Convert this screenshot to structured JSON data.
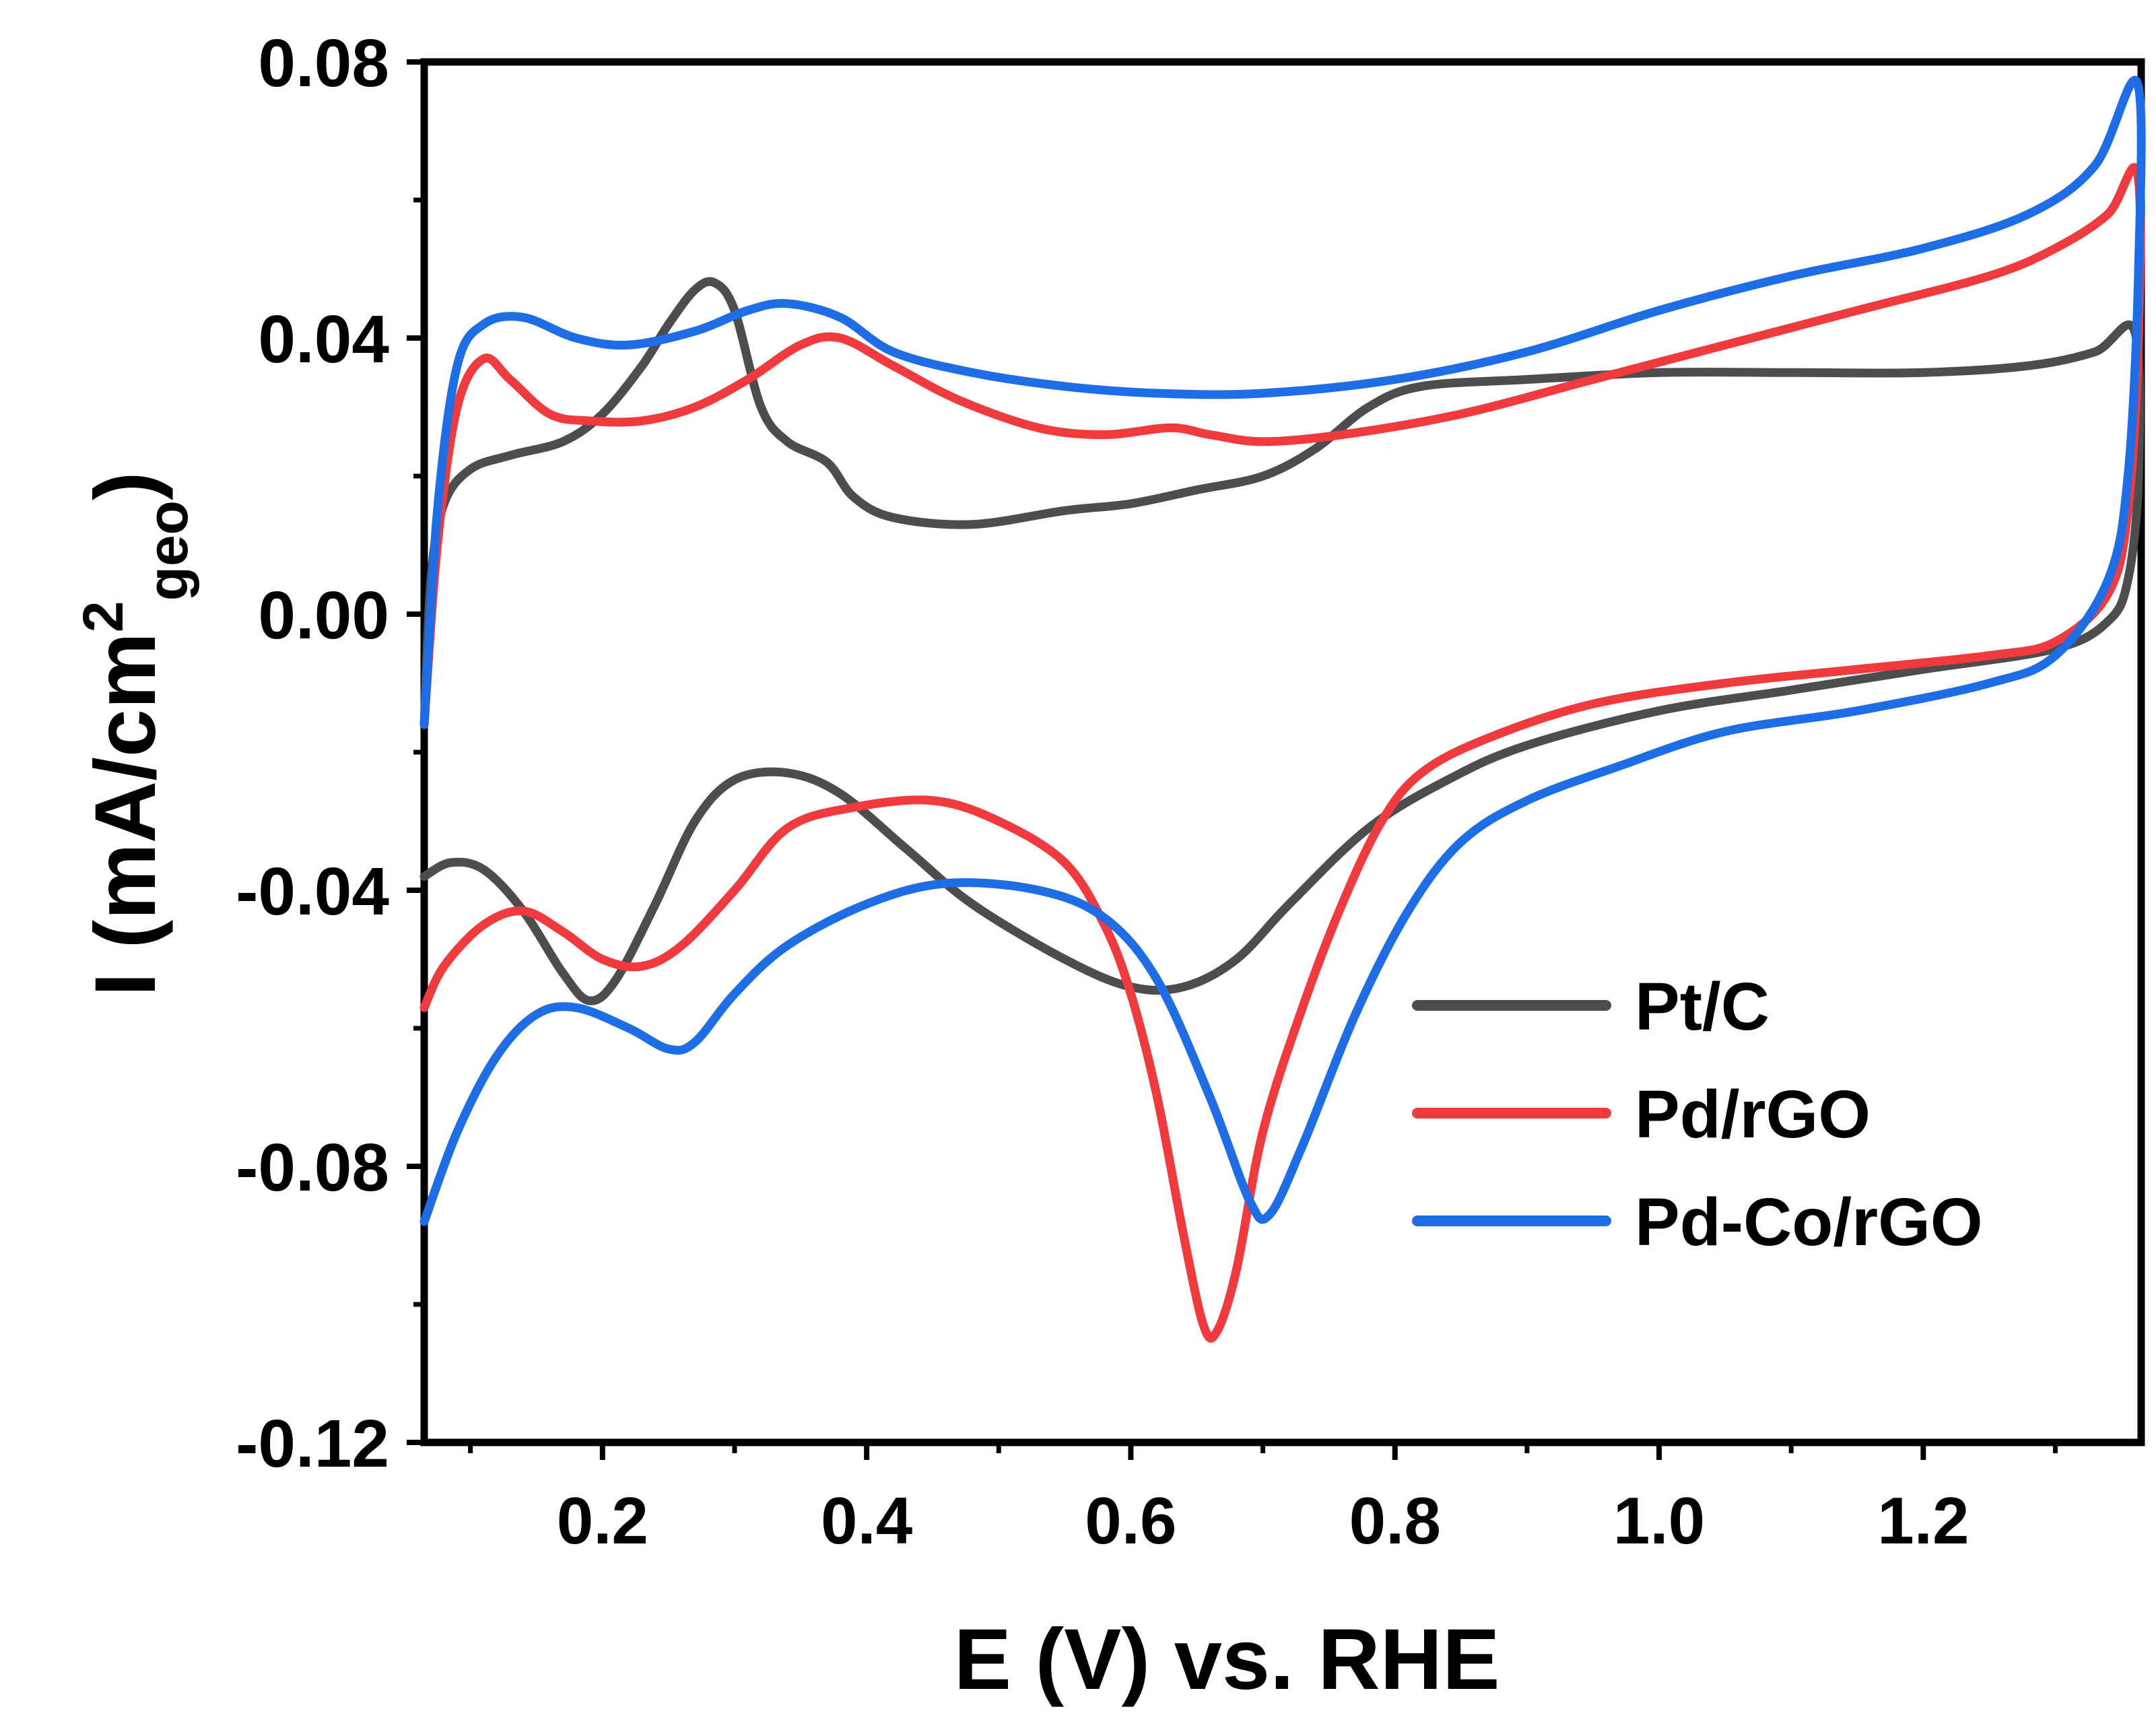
{
  "chart_data": {
    "type": "line",
    "title": "",
    "xlabel": "E (V) vs. RHE",
    "ylabel": {
      "main": "I (mA/cm",
      "superscript": "2",
      "subscript": "geo",
      "close": ")"
    },
    "xlim": [
      0.065,
      1.365
    ],
    "ylim": [
      -0.12,
      0.08
    ],
    "xticks": [
      0.2,
      0.4,
      0.6,
      0.8,
      1.0,
      1.2
    ],
    "xtick_labels": [
      "0.2",
      "0.4",
      "0.6",
      "0.8",
      "1.0",
      "1.2"
    ],
    "yticks": [
      0.08,
      0.04,
      0.0,
      -0.04,
      -0.08,
      -0.12
    ],
    "ytick_labels": [
      "0.08",
      "0.04",
      "0.00",
      "-0.04",
      "-0.08",
      "-0.12"
    ],
    "legend_position": "lower-right",
    "series": [
      {
        "name": "Pt/C",
        "color": "#4d4d4d",
        "points": [
          [
            0.065,
            -0.016
          ],
          [
            0.07,
            0.005
          ],
          [
            0.08,
            0.016
          ],
          [
            0.1,
            0.021
          ],
          [
            0.13,
            0.023
          ],
          [
            0.17,
            0.025
          ],
          [
            0.2,
            0.029
          ],
          [
            0.23,
            0.036
          ],
          [
            0.25,
            0.042
          ],
          [
            0.27,
            0.047
          ],
          [
            0.285,
            0.048
          ],
          [
            0.3,
            0.044
          ],
          [
            0.32,
            0.03
          ],
          [
            0.34,
            0.025
          ],
          [
            0.37,
            0.022
          ],
          [
            0.39,
            0.017
          ],
          [
            0.42,
            0.014
          ],
          [
            0.48,
            0.013
          ],
          [
            0.55,
            0.015
          ],
          [
            0.6,
            0.016
          ],
          [
            0.65,
            0.018
          ],
          [
            0.7,
            0.02
          ],
          [
            0.74,
            0.024
          ],
          [
            0.78,
            0.03
          ],
          [
            0.82,
            0.033
          ],
          [
            0.9,
            0.034
          ],
          [
            1.0,
            0.035
          ],
          [
            1.1,
            0.035
          ],
          [
            1.2,
            0.035
          ],
          [
            1.28,
            0.036
          ],
          [
            1.33,
            0.038
          ],
          [
            1.36,
            0.041
          ],
          [
            1.363,
            0.02
          ],
          [
            1.355,
            0.005
          ],
          [
            1.34,
            -0.001
          ],
          [
            1.3,
            -0.005
          ],
          [
            1.2,
            -0.008
          ],
          [
            1.1,
            -0.011
          ],
          [
            1.0,
            -0.014
          ],
          [
            0.9,
            -0.019
          ],
          [
            0.84,
            -0.024
          ],
          [
            0.78,
            -0.031
          ],
          [
            0.72,
            -0.042
          ],
          [
            0.68,
            -0.05
          ],
          [
            0.64,
            -0.054
          ],
          [
            0.6,
            -0.054
          ],
          [
            0.55,
            -0.05
          ],
          [
            0.48,
            -0.042
          ],
          [
            0.43,
            -0.034
          ],
          [
            0.38,
            -0.026
          ],
          [
            0.34,
            -0.023
          ],
          [
            0.3,
            -0.024
          ],
          [
            0.27,
            -0.03
          ],
          [
            0.24,
            -0.042
          ],
          [
            0.21,
            -0.053
          ],
          [
            0.19,
            -0.056
          ],
          [
            0.17,
            -0.052
          ],
          [
            0.14,
            -0.043
          ],
          [
            0.11,
            -0.037
          ],
          [
            0.085,
            -0.036
          ],
          [
            0.065,
            -0.038
          ]
        ]
      },
      {
        "name": "Pd/rGO",
        "color": "#f03a3e",
        "points": [
          [
            0.065,
            -0.016
          ],
          [
            0.075,
            0.01
          ],
          [
            0.09,
            0.03
          ],
          [
            0.11,
            0.037
          ],
          [
            0.13,
            0.034
          ],
          [
            0.16,
            0.029
          ],
          [
            0.19,
            0.028
          ],
          [
            0.23,
            0.028
          ],
          [
            0.27,
            0.03
          ],
          [
            0.31,
            0.034
          ],
          [
            0.35,
            0.039
          ],
          [
            0.38,
            0.04
          ],
          [
            0.42,
            0.036
          ],
          [
            0.47,
            0.031
          ],
          [
            0.53,
            0.027
          ],
          [
            0.58,
            0.026
          ],
          [
            0.63,
            0.027
          ],
          [
            0.66,
            0.026
          ],
          [
            0.7,
            0.025
          ],
          [
            0.76,
            0.026
          ],
          [
            0.85,
            0.029
          ],
          [
            0.95,
            0.034
          ],
          [
            1.05,
            0.039
          ],
          [
            1.15,
            0.044
          ],
          [
            1.25,
            0.049
          ],
          [
            1.3,
            0.053
          ],
          [
            1.34,
            0.058
          ],
          [
            1.362,
            0.064
          ],
          [
            1.363,
            0.04
          ],
          [
            1.355,
            0.015
          ],
          [
            1.34,
            0.003
          ],
          [
            1.3,
            -0.004
          ],
          [
            1.25,
            -0.006
          ],
          [
            1.15,
            -0.008
          ],
          [
            1.05,
            -0.01
          ],
          [
            0.95,
            -0.013
          ],
          [
            0.87,
            -0.018
          ],
          [
            0.82,
            -0.023
          ],
          [
            0.79,
            -0.03
          ],
          [
            0.76,
            -0.042
          ],
          [
            0.73,
            -0.057
          ],
          [
            0.7,
            -0.075
          ],
          [
            0.68,
            -0.095
          ],
          [
            0.665,
            -0.104
          ],
          [
            0.655,
            -0.103
          ],
          [
            0.64,
            -0.09
          ],
          [
            0.62,
            -0.07
          ],
          [
            0.6,
            -0.055
          ],
          [
            0.58,
            -0.045
          ],
          [
            0.55,
            -0.036
          ],
          [
            0.5,
            -0.03
          ],
          [
            0.45,
            -0.027
          ],
          [
            0.39,
            -0.028
          ],
          [
            0.34,
            -0.031
          ],
          [
            0.3,
            -0.04
          ],
          [
            0.26,
            -0.048
          ],
          [
            0.23,
            -0.051
          ],
          [
            0.2,
            -0.05
          ],
          [
            0.17,
            -0.046
          ],
          [
            0.14,
            -0.043
          ],
          [
            0.11,
            -0.045
          ],
          [
            0.08,
            -0.051
          ],
          [
            0.065,
            -0.057
          ]
        ]
      },
      {
        "name": "Pd-Co/rGO",
        "color": "#1d6de6",
        "points": [
          [
            0.065,
            -0.016
          ],
          [
            0.075,
            0.015
          ],
          [
            0.09,
            0.036
          ],
          [
            0.11,
            0.042
          ],
          [
            0.14,
            0.043
          ],
          [
            0.18,
            0.04
          ],
          [
            0.22,
            0.039
          ],
          [
            0.27,
            0.041
          ],
          [
            0.31,
            0.044
          ],
          [
            0.34,
            0.045
          ],
          [
            0.38,
            0.043
          ],
          [
            0.42,
            0.038
          ],
          [
            0.48,
            0.035
          ],
          [
            0.55,
            0.033
          ],
          [
            0.62,
            0.032
          ],
          [
            0.7,
            0.032
          ],
          [
            0.8,
            0.034
          ],
          [
            0.9,
            0.038
          ],
          [
            1.0,
            0.044
          ],
          [
            1.1,
            0.049
          ],
          [
            1.2,
            0.053
          ],
          [
            1.28,
            0.058
          ],
          [
            1.33,
            0.065
          ],
          [
            1.362,
            0.077
          ],
          [
            1.363,
            0.05
          ],
          [
            1.355,
            0.02
          ],
          [
            1.34,
            0.005
          ],
          [
            1.3,
            -0.006
          ],
          [
            1.25,
            -0.01
          ],
          [
            1.15,
            -0.014
          ],
          [
            1.05,
            -0.017
          ],
          [
            0.97,
            -0.022
          ],
          [
            0.9,
            -0.027
          ],
          [
            0.85,
            -0.033
          ],
          [
            0.81,
            -0.043
          ],
          [
            0.77,
            -0.058
          ],
          [
            0.73,
            -0.077
          ],
          [
            0.705,
            -0.087
          ],
          [
            0.69,
            -0.085
          ],
          [
            0.66,
            -0.07
          ],
          [
            0.62,
            -0.053
          ],
          [
            0.58,
            -0.044
          ],
          [
            0.53,
            -0.04
          ],
          [
            0.46,
            -0.039
          ],
          [
            0.4,
            -0.042
          ],
          [
            0.34,
            -0.048
          ],
          [
            0.3,
            -0.055
          ],
          [
            0.27,
            -0.062
          ],
          [
            0.25,
            -0.063
          ],
          [
            0.22,
            -0.06
          ],
          [
            0.18,
            -0.057
          ],
          [
            0.15,
            -0.058
          ],
          [
            0.12,
            -0.064
          ],
          [
            0.09,
            -0.075
          ],
          [
            0.065,
            -0.088
          ]
        ]
      }
    ]
  }
}
